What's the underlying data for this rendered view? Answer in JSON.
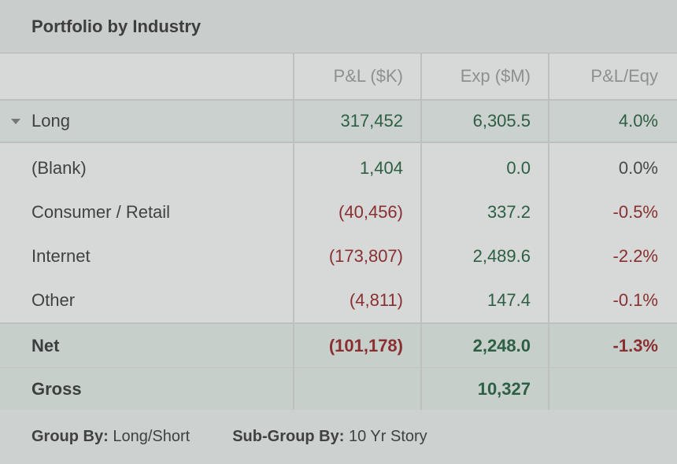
{
  "panel": {
    "title": "Portfolio by Industry"
  },
  "columns": {
    "pl": "P&L ($K)",
    "exp": "Exp ($M)",
    "pleqy": "P&L/Eqy"
  },
  "group": {
    "label": "Long",
    "pl": "317,452",
    "exp": "6,305.5",
    "pleqy": "4.0%"
  },
  "rows": [
    {
      "label": "(Blank)",
      "pl": "1,404",
      "exp": "0.0",
      "pleqy": "0.0%"
    },
    {
      "label": "Consumer / Retail",
      "pl": "(40,456)",
      "exp": "337.2",
      "pleqy": "-0.5%"
    },
    {
      "label": "Internet",
      "pl": "(173,807)",
      "exp": "2,489.6",
      "pleqy": "-2.2%"
    },
    {
      "label": "Other",
      "pl": "(4,811)",
      "exp": "147.4",
      "pleqy": "-0.1%"
    }
  ],
  "net": {
    "label": "Net",
    "pl": "(101,178)",
    "exp": "2,248.0",
    "pleqy": "-1.3%"
  },
  "gross": {
    "label": "Gross",
    "exp": "10,327"
  },
  "footer": {
    "group_by_key": "Group By:",
    "group_by_value": "Long/Short",
    "subgroup_by_key": "Sub-Group By:",
    "subgroup_by_value": "10 Yr Story"
  },
  "colors": {
    "positive": "#2e5e44",
    "negative": "#8a2f31"
  }
}
